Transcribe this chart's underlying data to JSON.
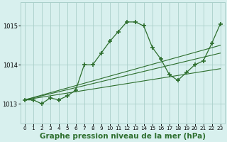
{
  "background_color": "#d8f0ee",
  "grid_color": "#aacfca",
  "line_color": "#2d6e2d",
  "marker_color": "#2d6e2d",
  "xlabel": "Graphe pression niveau de la mer (hPa)",
  "xlabel_fontsize": 7.5,
  "xlim": [
    -0.5,
    23.5
  ],
  "ylim": [
    1012.5,
    1015.6
  ],
  "yticks": [
    1013,
    1014,
    1015
  ],
  "xticks": [
    0,
    1,
    2,
    3,
    4,
    5,
    6,
    7,
    8,
    9,
    10,
    11,
    12,
    13,
    14,
    15,
    16,
    17,
    18,
    19,
    20,
    21,
    22,
    23
  ],
  "series": [
    {
      "x": [
        0,
        1,
        2,
        3,
        4,
        5,
        6,
        7,
        8,
        9,
        10,
        11,
        12,
        13,
        14,
        15,
        16,
        17,
        18,
        19,
        20,
        21,
        22,
        23
      ],
      "y": [
        1013.1,
        1013.1,
        1013.0,
        1013.15,
        1013.1,
        1013.2,
        1013.35,
        1014.0,
        1014.0,
        1014.3,
        1014.6,
        1014.85,
        1015.1,
        1015.1,
        1015.0,
        1014.45,
        1014.15,
        1013.75,
        1013.6,
        1013.8,
        1014.0,
        1014.1,
        1014.55,
        1015.05
      ],
      "marker": true
    },
    {
      "x": [
        0,
        23
      ],
      "y": [
        1013.1,
        1014.5
      ],
      "marker": false
    },
    {
      "x": [
        0,
        23
      ],
      "y": [
        1013.1,
        1014.3
      ],
      "marker": false
    },
    {
      "x": [
        0,
        23
      ],
      "y": [
        1013.1,
        1013.9
      ],
      "marker": false
    }
  ]
}
